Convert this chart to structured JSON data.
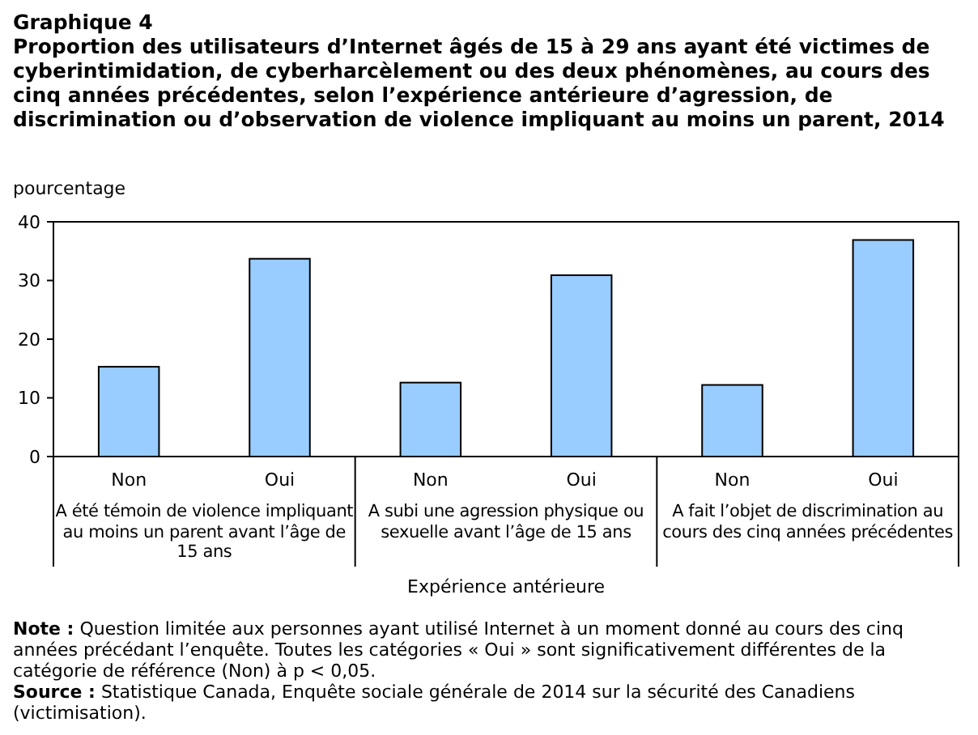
{
  "chart_data": {
    "type": "bar",
    "title": "Graphique  4",
    "subtitle": "Proportion des utilisateurs d’Internet âgés de 15 à 29 ans ayant été victimes de cyberintimidation, de cyberharcèlement ou des deux phénomènes, au cours des cinq années précédentes, selon l’expérience antérieure d’agression, de discrimination ou d’observation de violence impliquant au moins un parent, 2014",
    "ylabel": "pourcentage",
    "xlabel": "Expérience antérieure",
    "categories": [
      "Non",
      "Oui",
      "Non",
      "Oui",
      "Non",
      "Oui"
    ],
    "values": [
      15.3,
      33.7,
      12.6,
      30.9,
      12.2,
      36.9
    ],
    "color": "#99ccff",
    "ylim": [
      0,
      40
    ],
    "yticks": [
      0,
      10,
      20,
      30,
      40
    ],
    "grid": false,
    "annotations": [
      "A été témoin de violence impliquant au moins un parent avant l’âge de 15 ans",
      "A subi une agression physique ou sexuelle avant l’âge de 15 ans",
      "A fait l’objet de discrimination au cours des cinq années précédentes",
      "Note : Question limitée aux personnes ayant utilisé Internet à un moment donné au cours des cinq années précédant l’enquête. Toutes les catégories « Oui » sont significativement différentes de la catégorie de référence (Non) à p < 0,05.",
      "Source : Statistique Canada, Enquête sociale générale de 2014 sur la sécurité des Canadiens (victimisation)."
    ]
  }
}
